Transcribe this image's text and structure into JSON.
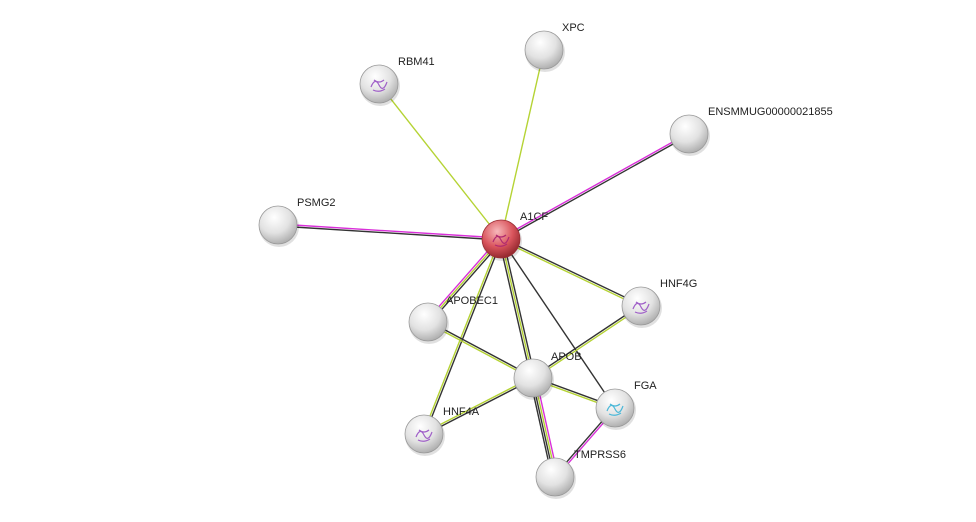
{
  "network": {
    "nodes": [
      {
        "id": "A1CF",
        "label": "A1CF",
        "query": true,
        "color": "#d9545c",
        "structure": "protein-structure"
      },
      {
        "id": "XPC",
        "label": "XPC",
        "query": false,
        "color": "#e8e8e8"
      },
      {
        "id": "RBM41",
        "label": "RBM41",
        "query": false,
        "color": "#e8e8e8",
        "structure": "protein-structure"
      },
      {
        "id": "ENSMMUG00000021855",
        "label": "ENSMMUG00000021855",
        "query": false,
        "color": "#e8e8e8"
      },
      {
        "id": "PSMG2",
        "label": "PSMG2",
        "query": false,
        "color": "#e8e8e8"
      },
      {
        "id": "HNF4G",
        "label": "HNF4G",
        "query": false,
        "color": "#e8e8e8",
        "structure": "protein-structure"
      },
      {
        "id": "APOBEC1",
        "label": "APOBEC1",
        "query": false,
        "color": "#e8e8e8"
      },
      {
        "id": "APOB",
        "label": "APOB",
        "query": false,
        "color": "#e8e8e8"
      },
      {
        "id": "FGA",
        "label": "FGA",
        "query": false,
        "color": "#e8e8e8",
        "structure": "protein-structure"
      },
      {
        "id": "HNF4A",
        "label": "HNF4A",
        "query": false,
        "color": "#e8e8e8",
        "structure": "protein-structure"
      },
      {
        "id": "TMPRSS6",
        "label": "TMPRSS6",
        "query": false,
        "color": "#e8e8e8"
      }
    ],
    "edge_colors": {
      "textmining": "#b5d334",
      "experiments": "#d92fd9",
      "coexpression": "#333333",
      "database": "#00b0c8"
    },
    "edges": [
      {
        "source": "A1CF",
        "target": "XPC",
        "evidence": [
          "textmining"
        ]
      },
      {
        "source": "A1CF",
        "target": "RBM41",
        "evidence": [
          "textmining"
        ]
      },
      {
        "source": "A1CF",
        "target": "ENSMMUG00000021855",
        "evidence": [
          "experiments",
          "coexpression"
        ]
      },
      {
        "source": "A1CF",
        "target": "PSMG2",
        "evidence": [
          "coexpression",
          "experiments"
        ]
      },
      {
        "source": "A1CF",
        "target": "HNF4G",
        "evidence": [
          "coexpression",
          "textmining"
        ]
      },
      {
        "source": "A1CF",
        "target": "APOBEC1",
        "evidence": [
          "coexpression",
          "textmining",
          "experiments"
        ]
      },
      {
        "source": "A1CF",
        "target": "APOB",
        "evidence": [
          "coexpression",
          "textmining",
          "coexpression"
        ]
      },
      {
        "source": "A1CF",
        "target": "FGA",
        "evidence": [
          "coexpression"
        ]
      },
      {
        "source": "A1CF",
        "target": "HNF4A",
        "evidence": [
          "coexpression",
          "textmining"
        ]
      },
      {
        "source": "APOBEC1",
        "target": "APOB",
        "evidence": [
          "coexpression",
          "textmining"
        ]
      },
      {
        "source": "APOB",
        "target": "HNF4G",
        "evidence": [
          "coexpression",
          "textmining"
        ]
      },
      {
        "source": "APOB",
        "target": "FGA",
        "evidence": [
          "coexpression",
          "textmining"
        ]
      },
      {
        "source": "APOB",
        "target": "HNF4A",
        "evidence": [
          "coexpression",
          "textmining"
        ]
      },
      {
        "source": "APOB",
        "target": "TMPRSS6",
        "evidence": [
          "experiments",
          "textmining",
          "coexpression",
          "coexpression"
        ]
      },
      {
        "source": "FGA",
        "target": "TMPRSS6",
        "evidence": [
          "experiments",
          "coexpression"
        ]
      }
    ]
  }
}
